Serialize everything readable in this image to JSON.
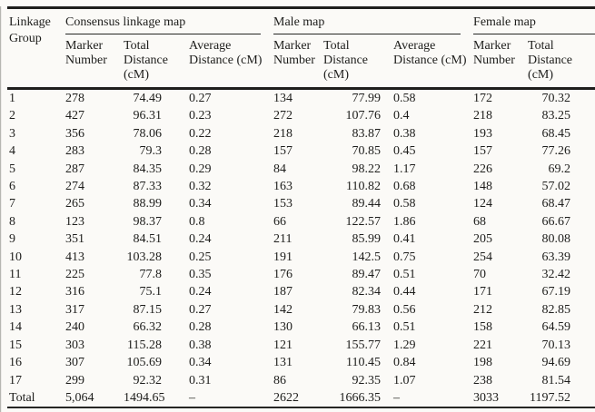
{
  "table": {
    "row_header": "Linkage Group",
    "groups": [
      {
        "label": "Consensus linkage map",
        "columns": [
          "Marker Number",
          "Total Distance (cM)",
          "Average Distance (cM)"
        ]
      },
      {
        "label": "Male map",
        "columns": [
          "Marker Number",
          "Total Distance (cM)",
          "Average Distance (cM)"
        ]
      },
      {
        "label": "Female map",
        "columns": [
          "Marker Number",
          "Total Distance (cM)"
        ]
      }
    ],
    "rows": [
      [
        "1",
        "278",
        "74.49",
        "0.27",
        "134",
        "77.99",
        "0.58",
        "172",
        "70.32"
      ],
      [
        "2",
        "427",
        "96.31",
        "0.23",
        "272",
        "107.76",
        "0.4",
        "218",
        "83.25"
      ],
      [
        "3",
        "356",
        "78.06",
        "0.22",
        "218",
        "83.87",
        "0.38",
        "193",
        "68.45"
      ],
      [
        "4",
        "283",
        "79.3",
        "0.28",
        "157",
        "70.85",
        "0.45",
        "157",
        "77.26"
      ],
      [
        "5",
        "287",
        "84.35",
        "0.29",
        "84",
        "98.22",
        "1.17",
        "226",
        "69.2"
      ],
      [
        "6",
        "274",
        "87.33",
        "0.32",
        "163",
        "110.82",
        "0.68",
        "148",
        "57.02"
      ],
      [
        "7",
        "265",
        "88.99",
        "0.34",
        "153",
        "89.44",
        "0.58",
        "124",
        "68.47"
      ],
      [
        "8",
        "123",
        "98.37",
        "0.8",
        "66",
        "122.57",
        "1.86",
        "68",
        "66.67"
      ],
      [
        "9",
        "351",
        "84.51",
        "0.24",
        "211",
        "85.99",
        "0.41",
        "205",
        "80.08"
      ],
      [
        "10",
        "413",
        "103.28",
        "0.25",
        "191",
        "142.5",
        "0.75",
        "254",
        "63.39"
      ],
      [
        "11",
        "225",
        "77.8",
        "0.35",
        "176",
        "89.47",
        "0.51",
        "70",
        "32.42"
      ],
      [
        "12",
        "316",
        "75.1",
        "0.24",
        "187",
        "82.34",
        "0.44",
        "171",
        "67.19"
      ],
      [
        "13",
        "317",
        "87.15",
        "0.27",
        "142",
        "79.83",
        "0.56",
        "212",
        "82.85"
      ],
      [
        "14",
        "240",
        "66.32",
        "0.28",
        "130",
        "66.13",
        "0.51",
        "158",
        "64.59"
      ],
      [
        "15",
        "303",
        "115.28",
        "0.38",
        "121",
        "155.77",
        "1.29",
        "221",
        "70.13"
      ],
      [
        "16",
        "307",
        "105.69",
        "0.34",
        "131",
        "110.45",
        "0.84",
        "198",
        "94.69"
      ],
      [
        "17",
        "299",
        "92.32",
        "0.31",
        "86",
        "92.35",
        "1.07",
        "238",
        "81.54"
      ]
    ],
    "total_row": [
      "Total",
      "5,064",
      "1494.65",
      "–",
      "2622",
      "1666.35",
      "–",
      "3033",
      "1197.52"
    ]
  },
  "colors": {
    "text": "#1d1d1b",
    "rule": "#1e1e1c",
    "background": "#fbfaf7"
  }
}
